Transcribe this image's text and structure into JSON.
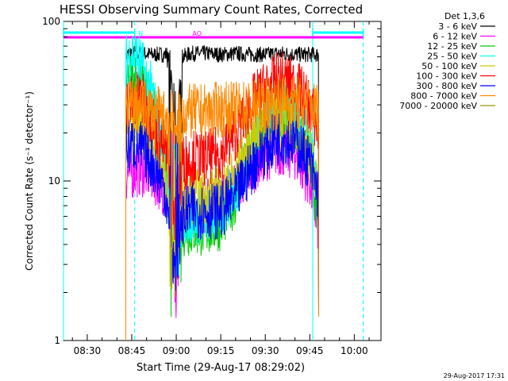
{
  "chart_data": {
    "type": "line",
    "title": "HESSI Observing Summary Count Rates, Corrected",
    "xlabel": "Start Time (29-Aug-17 08:29:02)",
    "ylabel": "Corrected Count Rate (s⁻¹ detector⁻¹)",
    "y_scale": "log",
    "ylim": [
      1,
      100
    ],
    "xlim": [
      "08:22",
      "10:09"
    ],
    "x_ticks": [
      "08:30",
      "08:45",
      "09:00",
      "09:15",
      "09:30",
      "09:45",
      "10:00"
    ],
    "y_ticks": [
      "1",
      "10",
      "100"
    ],
    "legend_title": "Det 1,3,6",
    "legend_position": "right",
    "series": [
      {
        "name": "3 - 6 keV",
        "color": "#000000",
        "x": [
          "08:43",
          "08:45",
          "08:48",
          "08:52",
          "08:56",
          "08:58",
          "09:00",
          "09:02",
          "09:05",
          "09:10",
          "09:15",
          "09:20",
          "09:25",
          "09:30",
          "09:35",
          "09:40",
          "09:45",
          "09:48"
        ],
        "y": [
          62,
          64,
          63,
          62,
          62,
          63,
          8,
          60,
          63,
          63,
          62,
          63,
          62,
          62,
          63,
          62,
          62,
          62
        ]
      },
      {
        "name": "6 - 12 keV",
        "color": "#ff00ff",
        "x": [
          "08:43",
          "08:45",
          "08:48",
          "08:52",
          "08:56",
          "08:58",
          "09:00",
          "09:02",
          "09:05",
          "09:10",
          "09:15",
          "09:20",
          "09:25",
          "09:30",
          "09:35",
          "09:40",
          "09:45",
          "09:48"
        ],
        "y": [
          11,
          11.5,
          12,
          11,
          9,
          5,
          2,
          6,
          7,
          7,
          7.5,
          9,
          12,
          15,
          16,
          15,
          10,
          5
        ]
      },
      {
        "name": "12 - 25 keV",
        "color": "#00cc00",
        "x": [
          "08:43",
          "08:45",
          "08:48",
          "08:52",
          "08:56",
          "08:58",
          "09:00",
          "09:02",
          "09:05",
          "09:10",
          "09:15",
          "09:20",
          "09:25",
          "09:30",
          "09:35",
          "09:40",
          "09:45",
          "09:48"
        ],
        "y": [
          40,
          45,
          42,
          30,
          15,
          6,
          3,
          5,
          5,
          5,
          5.5,
          8,
          15,
          24,
          27,
          24,
          15,
          6
        ]
      },
      {
        "name": "25 - 50 keV",
        "color": "#00ffff",
        "x": [
          "08:43",
          "08:45",
          "08:48",
          "08:52",
          "08:56",
          "08:58",
          "09:00",
          "09:02",
          "09:05",
          "09:10",
          "09:15",
          "09:20",
          "09:25",
          "09:30",
          "09:35",
          "09:40",
          "09:45",
          "09:48"
        ],
        "y": [
          55,
          65,
          55,
          35,
          15,
          7,
          3,
          6,
          6,
          6,
          6.5,
          9,
          17,
          27,
          31,
          27,
          17,
          8
        ]
      },
      {
        "name": "50 - 100 keV",
        "color": "#cccc00",
        "x": [
          "08:43",
          "08:45",
          "08:48",
          "08:52",
          "08:56",
          "08:58",
          "09:00",
          "09:02",
          "09:05",
          "09:10",
          "09:15",
          "09:20",
          "09:25",
          "09:30",
          "09:35",
          "09:40",
          "09:45",
          "09:48"
        ],
        "y": [
          21,
          23,
          24,
          18,
          10,
          6,
          3,
          7,
          8,
          8,
          8.5,
          11,
          17,
          24,
          27,
          24,
          15,
          8
        ]
      },
      {
        "name": "100 - 300 keV",
        "color": "#ff0000",
        "x": [
          "08:43",
          "08:45",
          "08:48",
          "08:52",
          "08:56",
          "08:58",
          "09:00",
          "09:02",
          "09:05",
          "09:10",
          "09:15",
          "09:20",
          "09:25",
          "09:30",
          "09:35",
          "09:40",
          "09:45",
          "09:48"
        ],
        "y": [
          30,
          32,
          33,
          25,
          16,
          12,
          5,
          13,
          14,
          14,
          15,
          20,
          30,
          38,
          44,
          40,
          30,
          20
        ]
      },
      {
        "name": "300 - 800 keV",
        "color": "#0000ff",
        "x": [
          "08:43",
          "08:45",
          "08:48",
          "08:52",
          "08:56",
          "08:58",
          "09:00",
          "09:02",
          "09:05",
          "09:10",
          "09:15",
          "09:20",
          "09:25",
          "09:30",
          "09:35",
          "09:40",
          "09:45",
          "09:48"
        ],
        "y": [
          16,
          17,
          16,
          13,
          9,
          5,
          2,
          6,
          6.5,
          6.5,
          6.5,
          8,
          12,
          16,
          19,
          18,
          13,
          8
        ]
      },
      {
        "name": "800 - 7000 keV",
        "color": "#ff8800",
        "x": [
          "08:43",
          "08:45",
          "08:48",
          "08:52",
          "08:56",
          "08:58",
          "09:00",
          "09:02",
          "09:05",
          "09:10",
          "09:15",
          "09:20",
          "09:25",
          "09:30",
          "09:35",
          "09:40",
          "09:45",
          "09:48"
        ],
        "y": [
          28,
          30,
          29,
          27,
          25,
          25,
          25,
          27,
          27,
          27,
          28,
          28,
          29,
          30,
          32,
          31,
          29,
          28
        ]
      },
      {
        "name": "7000 - 20000 keV",
        "color": "#999900",
        "x": [],
        "y": []
      }
    ],
    "annotations": [
      {
        "text": "N",
        "color": "#00ffff"
      },
      {
        "text": "AO",
        "color": "#ff00ff"
      }
    ],
    "footer_date": "29-Aug-2017 17:31"
  }
}
